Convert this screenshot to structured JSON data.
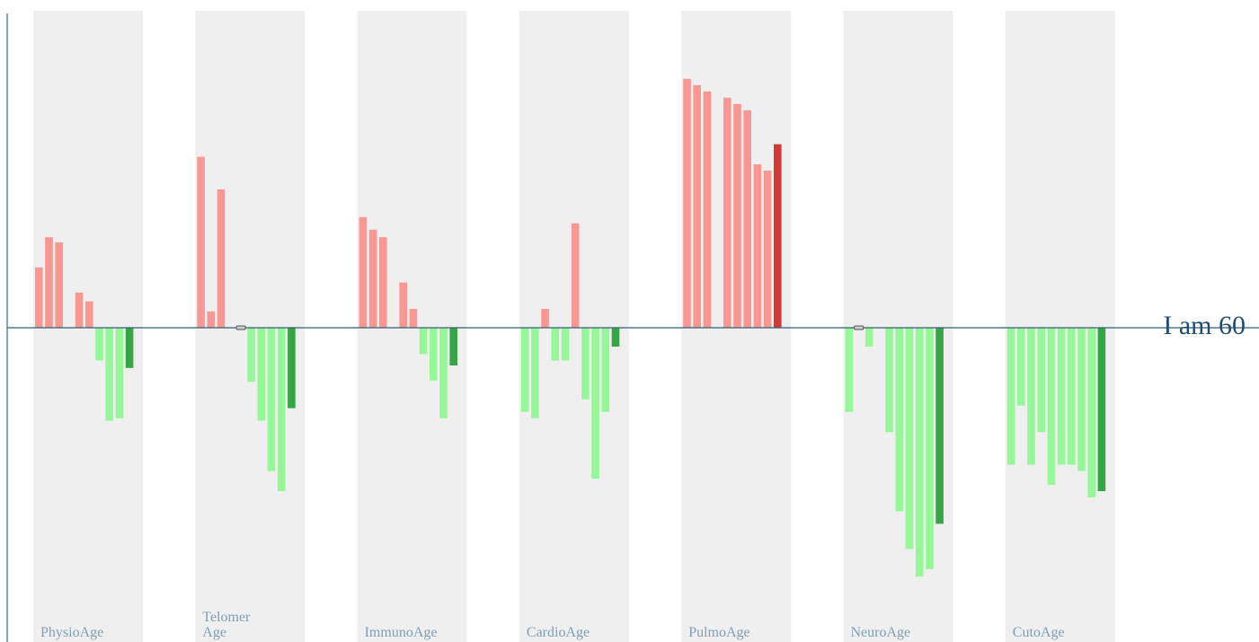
{
  "chart_data": {
    "type": "bar",
    "reference_label": "I am 60",
    "reference_value": 0,
    "ylim": [
      -10,
      10
    ],
    "groups": [
      {
        "label": [
          "PhysioAge"
        ],
        "values": [
          2.4,
          3.6,
          3.4,
          0,
          1.4,
          1.05,
          -1.3,
          -3.7,
          -3.6,
          -1.6
        ],
        "highlight_index": 9
      },
      {
        "label": [
          "Telomer",
          "Age"
        ],
        "values": [
          6.8,
          0.65,
          5.5,
          0,
          0,
          -2.15,
          -3.7,
          -5.7,
          -6.5,
          -3.2
        ],
        "highlight_index": 9,
        "zero_marker_index": 4
      },
      {
        "label": [
          "ImmunoAge"
        ],
        "values": [
          4.4,
          3.9,
          3.6,
          0,
          1.8,
          0.75,
          -1.05,
          -2.1,
          -3.6,
          -1.5
        ],
        "highlight_index": 9
      },
      {
        "label": [
          "CardioAge"
        ],
        "values": [
          -3.35,
          -3.6,
          0.75,
          -1.3,
          -1.3,
          4.15,
          -2.85,
          -6.0,
          -3.35,
          -0.75
        ],
        "highlight_index": 9
      },
      {
        "label": [
          "PulmoAge"
        ],
        "values": [
          9.9,
          9.65,
          9.4,
          0,
          9.15,
          8.9,
          8.65,
          6.5,
          6.25,
          7.3
        ],
        "highlight_index": 9
      },
      {
        "label": [
          "NeuroAge"
        ],
        "values": [
          -3.35,
          0,
          -0.75,
          0,
          -4.15,
          -7.3,
          -8.8,
          -9.9,
          -9.6,
          -7.8
        ],
        "highlight_index": 9,
        "zero_marker_index": 1
      },
      {
        "label": [
          "CutoAge"
        ],
        "values": [
          -5.45,
          -3.1,
          -5.45,
          -4.15,
          -6.25,
          -5.45,
          -5.45,
          -5.7,
          -6.75,
          -6.5
        ],
        "highlight_index": 9
      }
    ],
    "colors": {
      "positive": "#f99793",
      "positive_highlight": "#d13c32",
      "negative": "#96f799",
      "negative_highlight": "#35a545",
      "panel": "#efefef",
      "baseline": "#2f5f72"
    },
    "grid": false
  }
}
